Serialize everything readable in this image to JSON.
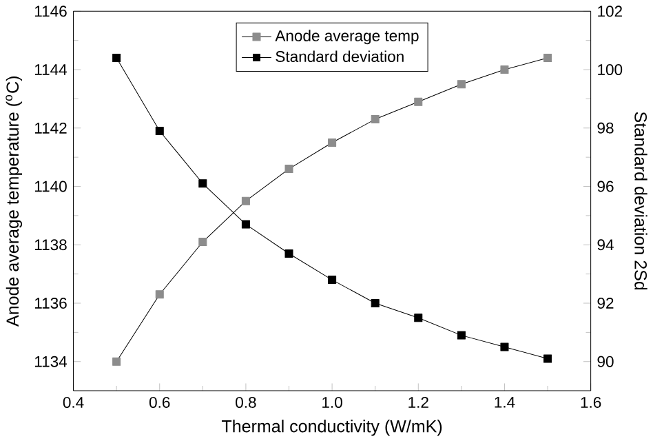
{
  "chart_data": {
    "type": "line",
    "xlabel": "Thermal conductivity (W/mK)",
    "ylabel": "Anode average temperature ($^{o}$C)",
    "y2label": "Standard deviation 2Sd",
    "x": [
      0.5,
      0.6,
      0.7,
      0.8,
      0.9,
      1.0,
      1.1,
      1.2,
      1.3,
      1.4,
      1.5
    ],
    "series": [
      {
        "name": "Anode average temp",
        "color": "#8c8c8c",
        "values": [
          1134.0,
          1136.3,
          1138.1,
          1139.5,
          1140.6,
          1141.5,
          1142.3,
          1142.9,
          1143.5,
          1144.0,
          1144.4
        ]
      },
      {
        "name": "Standard deviation",
        "color": "#000000",
        "axis": "y2",
        "values": [
          100.4,
          97.9,
          96.1,
          94.7,
          93.7,
          92.8,
          92.0,
          91.5,
          90.9,
          90.5,
          90.1
        ]
      }
    ],
    "xlim": [
      0.4,
      1.6
    ],
    "xticks": [
      0.4,
      0.6,
      0.8,
      {
        "value": 1.0,
        "label": "1.0"
      },
      1.2,
      1.4,
      1.6
    ],
    "ylim": [
      1133,
      1146
    ],
    "yticks": [
      1134,
      1136,
      1138,
      1140,
      1142,
      1144,
      1146
    ],
    "y2lim": [
      89,
      102
    ],
    "y2ticks": [
      90,
      92,
      94,
      96,
      98,
      100,
      102
    ],
    "legend": "top",
    "marker": "square",
    "grid": false
  }
}
